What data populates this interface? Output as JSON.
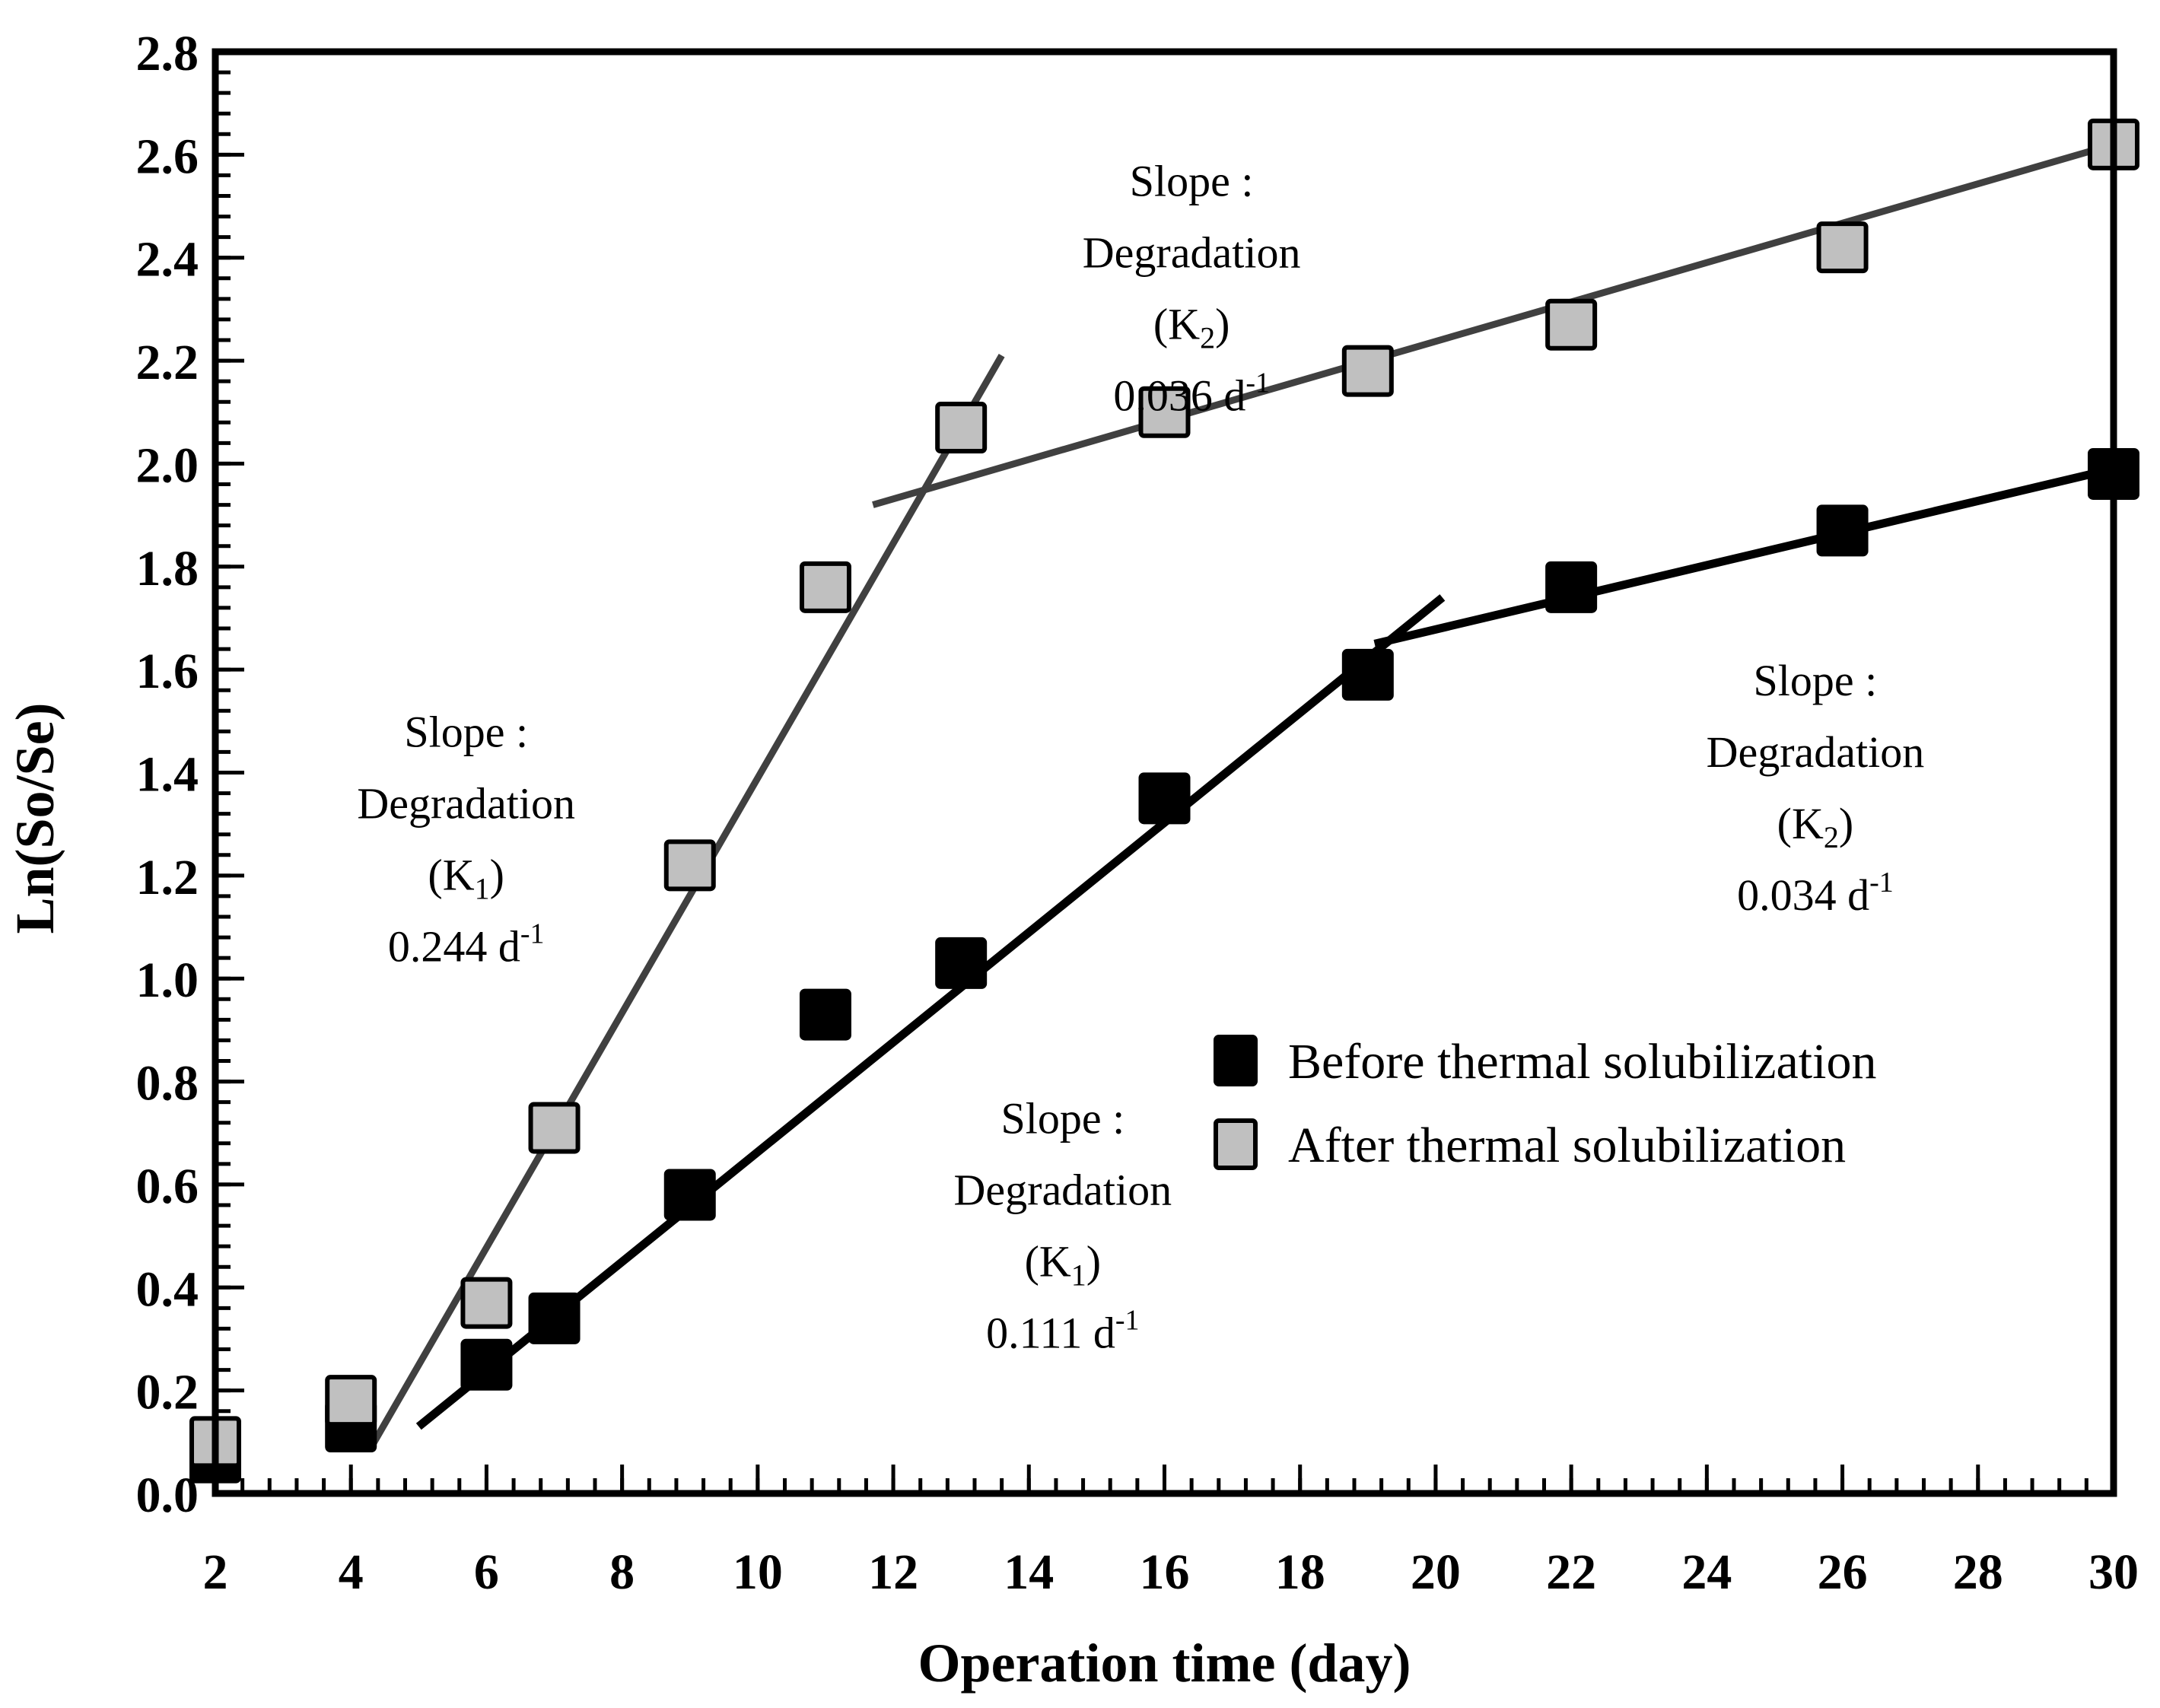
{
  "chart_data": {
    "type": "scatter",
    "title": "",
    "xlabel": "Operation time (day)",
    "ylabel": "Ln(So/Se)",
    "xlim": [
      2,
      30
    ],
    "ylim": [
      0,
      2.8
    ],
    "x_ticks": [
      2,
      4,
      6,
      8,
      10,
      12,
      14,
      16,
      18,
      20,
      22,
      24,
      26,
      28,
      30
    ],
    "x_tick_labels": [
      "2",
      "4",
      "6",
      "8",
      "10",
      "12",
      "14",
      "16",
      "18",
      "20",
      "22",
      "24",
      "26",
      "28",
      "30"
    ],
    "y_ticks": [
      0,
      0.2,
      0.4,
      0.6,
      0.8,
      1.0,
      1.2,
      1.4,
      1.6,
      1.8,
      2.0,
      2.2,
      2.4,
      2.6,
      2.8
    ],
    "y_tick_labels": [
      "0.0",
      "0.2",
      "0.4",
      "0.6",
      "0.8",
      "1.0",
      "1.2",
      "1.4",
      "1.6",
      "1.8",
      "2.0",
      "2.2",
      "2.4",
      "2.6",
      "2.8"
    ],
    "x_minor_step": 0.4,
    "y_minor_step": 0.04,
    "grid": false,
    "legend_position": "center-right",
    "series": [
      {
        "name": "Before thermal solubilization",
        "marker": "square",
        "color": "#000000",
        "x": [
          2,
          4,
          6,
          7,
          9,
          11,
          13,
          16,
          19,
          22,
          26,
          30
        ],
        "y": [
          0.07,
          0.13,
          0.25,
          0.34,
          0.58,
          0.93,
          1.03,
          1.35,
          1.59,
          1.76,
          1.87,
          1.98
        ]
      },
      {
        "name": "After thermal solubilization",
        "marker": "square",
        "color": "#c0c0c0",
        "x": [
          2,
          4,
          6,
          7,
          9,
          11,
          13,
          16,
          19,
          22,
          26,
          30
        ],
        "y": [
          0.1,
          0.18,
          0.37,
          0.71,
          1.22,
          1.76,
          2.07,
          2.1,
          2.18,
          2.27,
          2.42,
          2.62
        ]
      }
    ],
    "fit_lines": [
      {
        "name": "before-k1-fit",
        "color": "#000000",
        "x": [
          5.0,
          20.1
        ],
        "y": [
          0.13,
          1.74
        ]
      },
      {
        "name": "before-k2-fit",
        "color": "#000000",
        "x": [
          19.1,
          30.0
        ],
        "y": [
          1.65,
          1.99
        ]
      },
      {
        "name": "after-k1-fit",
        "color": "#404040",
        "x": [
          4.3,
          13.6
        ],
        "y": [
          0.09,
          2.21
        ]
      },
      {
        "name": "after-k2-fit",
        "color": "#404040",
        "x": [
          11.7,
          30.0
        ],
        "y": [
          1.92,
          2.62
        ]
      }
    ],
    "annotations": [
      {
        "id": "after-k2",
        "x": 16.4,
        "y": 2.52,
        "lines": [
          "Slope :",
          "Degradation",
          "(K",
          "0.036 d"
        ],
        "sub": "2",
        "value": "0.036",
        "unit": "d",
        "sup": "-1"
      },
      {
        "id": "after-k1",
        "x": 5.7,
        "y": 1.45,
        "lines": [
          "Slope :",
          "Degradation",
          "(K",
          "0.244 d"
        ],
        "sub": "1",
        "value": "0.244",
        "unit": "d",
        "sup": "-1"
      },
      {
        "id": "before-k1",
        "x": 14.5,
        "y": 0.7,
        "lines": [
          "Slope :",
          "Degradation",
          "(K",
          "0.111 d"
        ],
        "sub": "1",
        "value": "0.111",
        "unit": "d",
        "sup": "-1"
      },
      {
        "id": "before-k2",
        "x": 25.6,
        "y": 1.55,
        "lines": [
          "Slope :",
          "Degradation",
          "(K",
          "0.034 d"
        ],
        "sub": "2",
        "value": "0.034",
        "unit": "d",
        "sup": "-1"
      }
    ]
  }
}
